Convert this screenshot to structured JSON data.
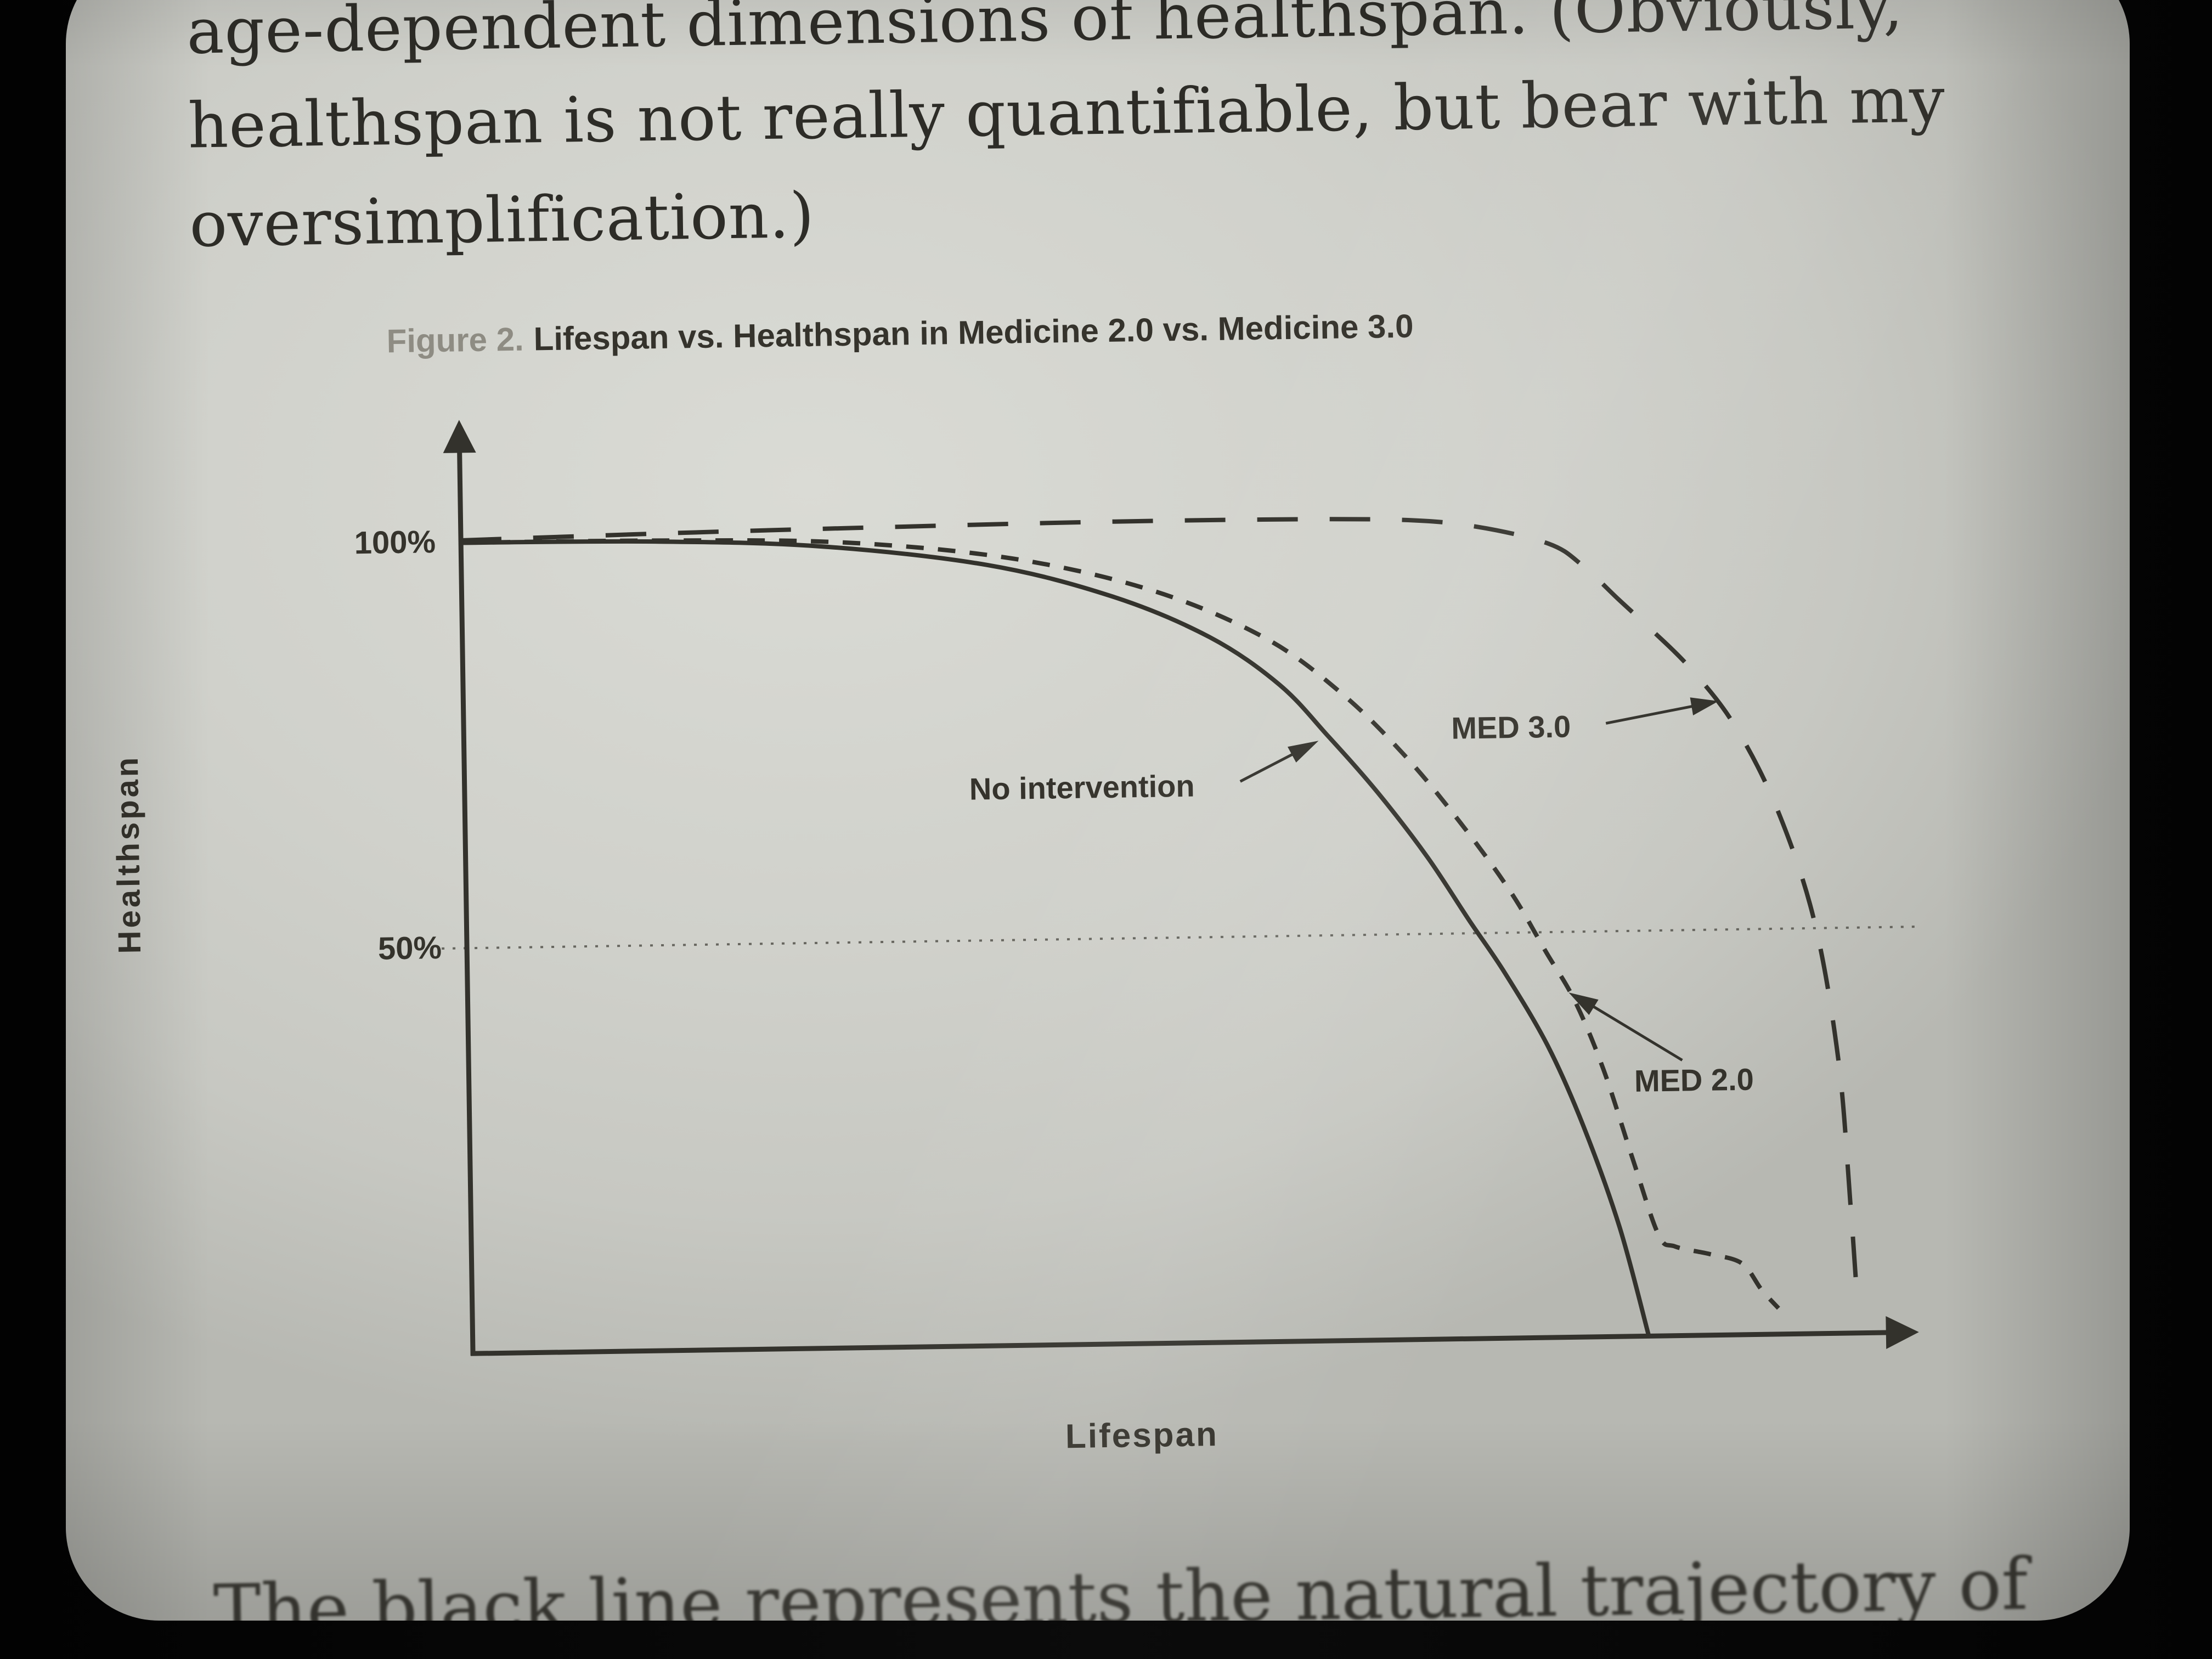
{
  "page": {
    "paragraph_top": {
      "line1": "age-dependent dimensions of healthspan. (Obviously,",
      "line2": "healthspan is not really quantifiable, but bear with my",
      "line3": "oversimplification.)"
    },
    "paragraph_bottom": "The black line represents the natural trajectory of"
  },
  "figure": {
    "caption_prefix": "Figure 2.",
    "caption_title": "Lifespan vs. Healthspan in Medicine 2.0 vs. Medicine 3.0"
  },
  "chart_data": {
    "type": "line",
    "title": "Lifespan vs. Healthspan in Medicine 2.0 vs. Medicine 3.0",
    "xlabel": "Lifespan",
    "ylabel": "Healthspan",
    "xlim": [
      0,
      105
    ],
    "ylim": [
      0,
      110
    ],
    "grid": "single dotted horizontal line at 50%",
    "gridline_y": 50,
    "yticks": [
      {
        "value": 100,
        "label": "100%"
      },
      {
        "value": 50,
        "label": "50%"
      }
    ],
    "xticks": [],
    "legend_position": "inline annotations with arrows",
    "ink_color": "#33322c",
    "series": [
      {
        "name": "No intervention",
        "style": "solid",
        "points": [
          [
            0,
            100
          ],
          [
            14,
            99.8
          ],
          [
            26,
            98.9
          ],
          [
            38,
            96.3
          ],
          [
            47,
            92.2
          ],
          [
            54,
            87
          ],
          [
            59,
            81
          ],
          [
            62.5,
            74.5
          ],
          [
            66,
            67.5
          ],
          [
            69.5,
            59.5
          ],
          [
            72.5,
            51.5
          ],
          [
            75,
            45
          ],
          [
            78,
            36
          ],
          [
            80.5,
            26
          ],
          [
            83,
            13.5
          ],
          [
            85,
            0
          ]
        ]
      },
      {
        "name": "MED 2.0",
        "style": "dashed",
        "points": [
          [
            0,
            100
          ],
          [
            15,
            99.9
          ],
          [
            28,
            99.3
          ],
          [
            40,
            97
          ],
          [
            50,
            92.8
          ],
          [
            58,
            86.8
          ],
          [
            63.5,
            79.8
          ],
          [
            68,
            72
          ],
          [
            72,
            63.5
          ],
          [
            75.5,
            55
          ],
          [
            78,
            47.5
          ],
          [
            80,
            41.5
          ],
          [
            82,
            33
          ],
          [
            84,
            22
          ],
          [
            85.8,
            12.5
          ],
          [
            87,
            11
          ],
          [
            89.5,
            10
          ],
          [
            91.8,
            8.8
          ],
          [
            93.2,
            5.5
          ],
          [
            94.4,
            3.2
          ]
        ]
      },
      {
        "name": "MED 3.0",
        "style": "long-dash",
        "points": [
          [
            0,
            100.3
          ],
          [
            15,
            100.8
          ],
          [
            28,
            101.1
          ],
          [
            45,
            101.4
          ],
          [
            58,
            101.4
          ],
          [
            68,
            101.1
          ],
          [
            73.5,
            100.1
          ],
          [
            78.6,
            97.9
          ],
          [
            81,
            95.2
          ],
          [
            83.6,
            90.9
          ],
          [
            86,
            87
          ],
          [
            88.7,
            82.3
          ],
          [
            91.8,
            75.3
          ],
          [
            94.8,
            64.9
          ],
          [
            97.4,
            50.9
          ],
          [
            99,
            33.6
          ],
          [
            99.7,
            16.2
          ],
          [
            100.1,
            4
          ]
        ]
      }
    ],
    "annotations": [
      {
        "text": "No intervention",
        "points_to": "No intervention"
      },
      {
        "text": "MED 3.0",
        "points_to": "MED 3.0"
      },
      {
        "text": "MED 2.0",
        "points_to": "MED 2.0"
      }
    ]
  }
}
